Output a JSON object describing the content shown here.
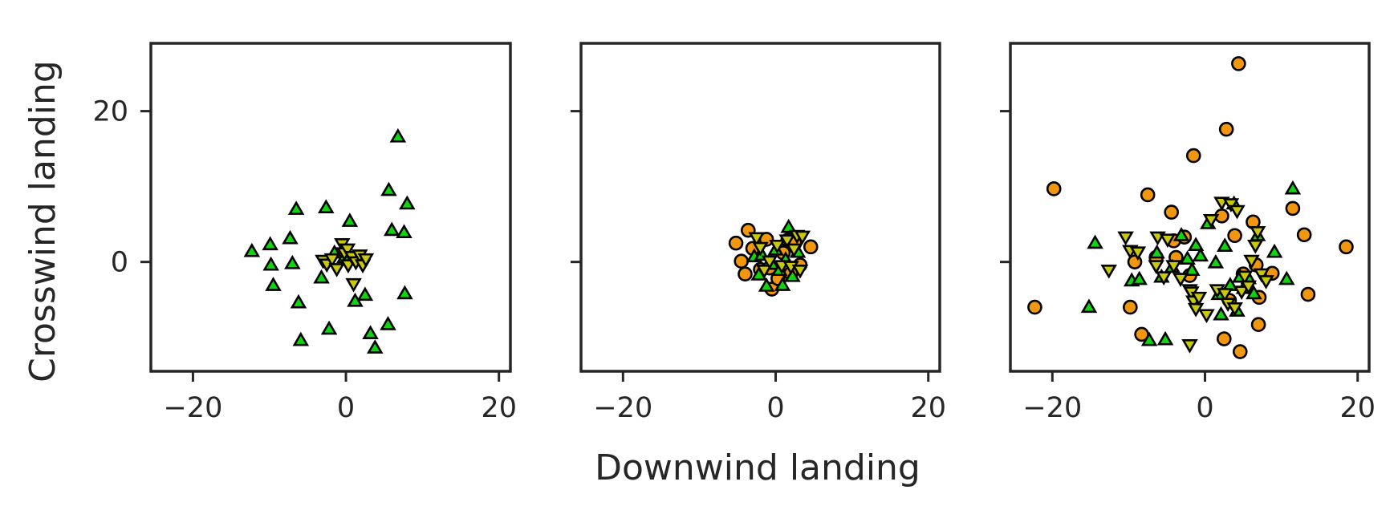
{
  "chart_data": [
    {
      "type": "scatter",
      "xlim": [
        -25.5,
        21.5
      ],
      "ylim": [
        -14.5,
        29
      ],
      "xticks": [
        -20,
        0,
        20
      ],
      "yticks": [
        0,
        20
      ],
      "series": [
        {
          "marker": "triangle-up",
          "color": "#11d411",
          "points": [
            [
              -12.3,
              1.3
            ],
            [
              -9.9,
              2.2
            ],
            [
              -9.8,
              -0.5
            ],
            [
              -9.5,
              -3.2
            ],
            [
              -7.3,
              3.0
            ],
            [
              -7.0,
              -0.3
            ],
            [
              -6.5,
              6.9
            ],
            [
              -6.2,
              -5.5
            ],
            [
              -5.9,
              -10.5
            ],
            [
              -3.2,
              -2.2
            ],
            [
              -2.6,
              7.1
            ],
            [
              -2.2,
              -9.0
            ],
            [
              -1.5,
              1.1
            ],
            [
              -0.2,
              0.5
            ],
            [
              0.5,
              5.3
            ],
            [
              1.2,
              -5.3
            ],
            [
              2.5,
              -4.5
            ],
            [
              3.2,
              -9.6
            ],
            [
              3.8,
              -11.5
            ],
            [
              5.5,
              -8.4
            ],
            [
              5.6,
              9.4
            ],
            [
              6.0,
              4.1
            ],
            [
              6.8,
              16.5
            ],
            [
              7.6,
              3.8
            ],
            [
              7.7,
              -4.3
            ],
            [
              8.0,
              7.6
            ]
          ]
        },
        {
          "marker": "triangle-down",
          "color": "#c8c80c",
          "points": [
            [
              -3.0,
              0.3
            ],
            [
              -2.5,
              -0.2
            ],
            [
              -1.8,
              0.5
            ],
            [
              -1.2,
              -0.8
            ],
            [
              -0.5,
              2.5
            ],
            [
              -0.2,
              1.3
            ],
            [
              0.2,
              1.8
            ],
            [
              0.3,
              -0.3
            ],
            [
              0.8,
              0.8
            ],
            [
              1.0,
              -2.8
            ],
            [
              1.3,
              0.1
            ],
            [
              1.8,
              1.0
            ],
            [
              2.2,
              -0.3
            ],
            [
              2.6,
              0.5
            ]
          ]
        }
      ]
    },
    {
      "type": "scatter",
      "xlim": [
        -25.5,
        21.5
      ],
      "ylim": [
        -14.5,
        29
      ],
      "xticks": [
        -20,
        0,
        20
      ],
      "yticks": [
        0,
        20
      ],
      "series": [
        {
          "marker": "circle",
          "color": "#f0960f",
          "points": [
            [
              -5.2,
              2.5
            ],
            [
              -4.5,
              0.1
            ],
            [
              -4.0,
              -1.6
            ],
            [
              -3.6,
              4.2
            ],
            [
              -3.0,
              1.8
            ],
            [
              -2.0,
              -1.0
            ],
            [
              -1.2,
              3.0
            ],
            [
              -0.8,
              -0.8
            ],
            [
              -0.5,
              -3.6
            ],
            [
              0.3,
              -2.2
            ],
            [
              1.0,
              1.2
            ],
            [
              1.6,
              2.9
            ],
            [
              2.0,
              -1.5
            ],
            [
              2.5,
              2.5
            ],
            [
              3.2,
              -0.4
            ],
            [
              4.6,
              2.0
            ]
          ]
        },
        {
          "marker": "triangle-up",
          "color": "#11d411",
          "points": [
            [
              -2.8,
              0.6
            ],
            [
              -2.2,
              -1.8
            ],
            [
              -1.8,
              0.8
            ],
            [
              -1.2,
              -3.3
            ],
            [
              -0.5,
              -0.4
            ],
            [
              0.0,
              1.5
            ],
            [
              0.5,
              -1.2
            ],
            [
              0.9,
              -3.2
            ],
            [
              1.3,
              0.2
            ],
            [
              1.7,
              4.5
            ],
            [
              2.2,
              -2.0
            ],
            [
              2.9,
              1.2
            ]
          ]
        },
        {
          "marker": "triangle-down",
          "color": "#c8c80c",
          "points": [
            [
              -2.5,
              3.3
            ],
            [
              -2.0,
              2.0
            ],
            [
              -1.5,
              -1.0
            ],
            [
              -0.8,
              0.2
            ],
            [
              0.2,
              2.3
            ],
            [
              0.8,
              -0.4
            ],
            [
              1.5,
              3.0
            ],
            [
              2.0,
              -0.5
            ],
            [
              2.4,
              1.8
            ],
            [
              2.8,
              3.6
            ],
            [
              3.2,
              -1.0
            ],
            [
              3.5,
              3.5
            ]
          ]
        }
      ]
    },
    {
      "type": "scatter",
      "xlim": [
        -25.5,
        21.5
      ],
      "ylim": [
        -14.5,
        29
      ],
      "xticks": [
        -20,
        0,
        20
      ],
      "yticks": [
        0,
        20
      ],
      "series": [
        {
          "marker": "circle",
          "color": "#f0960f",
          "points": [
            [
              -22.3,
              -6.0
            ],
            [
              -19.8,
              9.7
            ],
            [
              -9.8,
              -6.0
            ],
            [
              -9.2,
              0.0
            ],
            [
              -8.3,
              -9.6
            ],
            [
              -7.5,
              8.9
            ],
            [
              -6.4,
              0.6
            ],
            [
              -4.4,
              6.6
            ],
            [
              -4.1,
              2.8
            ],
            [
              -3.8,
              0.6
            ],
            [
              -2.7,
              3.3
            ],
            [
              -2.0,
              -1.8
            ],
            [
              -1.5,
              14.1
            ],
            [
              2.2,
              6.1
            ],
            [
              2.5,
              -10.2
            ],
            [
              2.8,
              17.6
            ],
            [
              3.2,
              -5.1
            ],
            [
              3.9,
              3.5
            ],
            [
              4.4,
              26.3
            ],
            [
              4.6,
              -11.9
            ],
            [
              5.0,
              -1.6
            ],
            [
              6.3,
              5.3
            ],
            [
              6.7,
              -0.4
            ],
            [
              7.0,
              -8.3
            ],
            [
              7.1,
              -4.7
            ],
            [
              8.8,
              -1.5
            ],
            [
              11.5,
              7.1
            ],
            [
              13.0,
              3.6
            ],
            [
              13.5,
              -4.3
            ],
            [
              18.5,
              2.0
            ]
          ]
        },
        {
          "marker": "triangle-up",
          "color": "#11d411",
          "points": [
            [
              -14.4,
              2.4
            ],
            [
              -15.2,
              -6.1
            ],
            [
              -9.6,
              -2.6
            ],
            [
              -8.6,
              -2.4
            ],
            [
              -7.3,
              -10.5
            ],
            [
              -6.3,
              1.1
            ],
            [
              -5.7,
              -2.1
            ],
            [
              -5.2,
              -10.4
            ],
            [
              -4.3,
              -0.8
            ],
            [
              -3.1,
              3.4
            ],
            [
              -2.3,
              0.3
            ],
            [
              -1.7,
              -1.2
            ],
            [
              -1.2,
              2.1
            ],
            [
              -0.6,
              0.7
            ],
            [
              0.4,
              5.0
            ],
            [
              1.4,
              -0.2
            ],
            [
              1.8,
              -4.4
            ],
            [
              2.1,
              -7.1
            ],
            [
              2.6,
              2.0
            ],
            [
              3.3,
              -3.2
            ],
            [
              3.8,
              7.6
            ],
            [
              4.2,
              -6.6
            ],
            [
              4.6,
              -2.1
            ],
            [
              5.1,
              -3.6
            ],
            [
              5.7,
              -2.3
            ],
            [
              6.4,
              -4.3
            ],
            [
              6.9,
              3.4
            ],
            [
              9.1,
              1.2
            ],
            [
              10.7,
              -2.4
            ],
            [
              11.5,
              9.6
            ]
          ]
        },
        {
          "marker": "triangle-down",
          "color": "#c8c80c",
          "points": [
            [
              -12.6,
              -1.0
            ],
            [
              -10.4,
              3.4
            ],
            [
              -9.8,
              1.6
            ],
            [
              -8.8,
              1.4
            ],
            [
              -6.4,
              -0.4
            ],
            [
              -6.2,
              3.4
            ],
            [
              -5.4,
              -1.9
            ],
            [
              -4.9,
              3.1
            ],
            [
              -4.1,
              -0.4
            ],
            [
              -3.2,
              -2.1
            ],
            [
              -2.0,
              -3.6
            ],
            [
              -1.8,
              -3.9
            ],
            [
              -1.5,
              -5.1
            ],
            [
              -1.2,
              -6.1
            ],
            [
              -2.0,
              -10.9
            ],
            [
              -0.8,
              -4.6
            ],
            [
              0.2,
              -6.9
            ],
            [
              0.8,
              5.7
            ],
            [
              1.6,
              -3.6
            ],
            [
              2.2,
              8.0
            ],
            [
              2.6,
              -4.1
            ],
            [
              3.0,
              -5.4
            ],
            [
              3.4,
              7.8
            ],
            [
              3.9,
              -6.0
            ],
            [
              4.2,
              6.9
            ],
            [
              4.8,
              -3.8
            ],
            [
              5.2,
              -1.8
            ],
            [
              5.7,
              -3.1
            ],
            [
              6.1,
              0.3
            ],
            [
              6.6,
              2.3
            ],
            [
              6.9,
              4.1
            ],
            [
              7.4,
              -1.5
            ],
            [
              8.0,
              -2.4
            ]
          ]
        }
      ]
    }
  ],
  "labels": {
    "xlabel": "Downwind landing",
    "ylabel": "Crosswind landing"
  },
  "colors": {
    "axes": "#262626",
    "marker_edge": "#000000"
  }
}
